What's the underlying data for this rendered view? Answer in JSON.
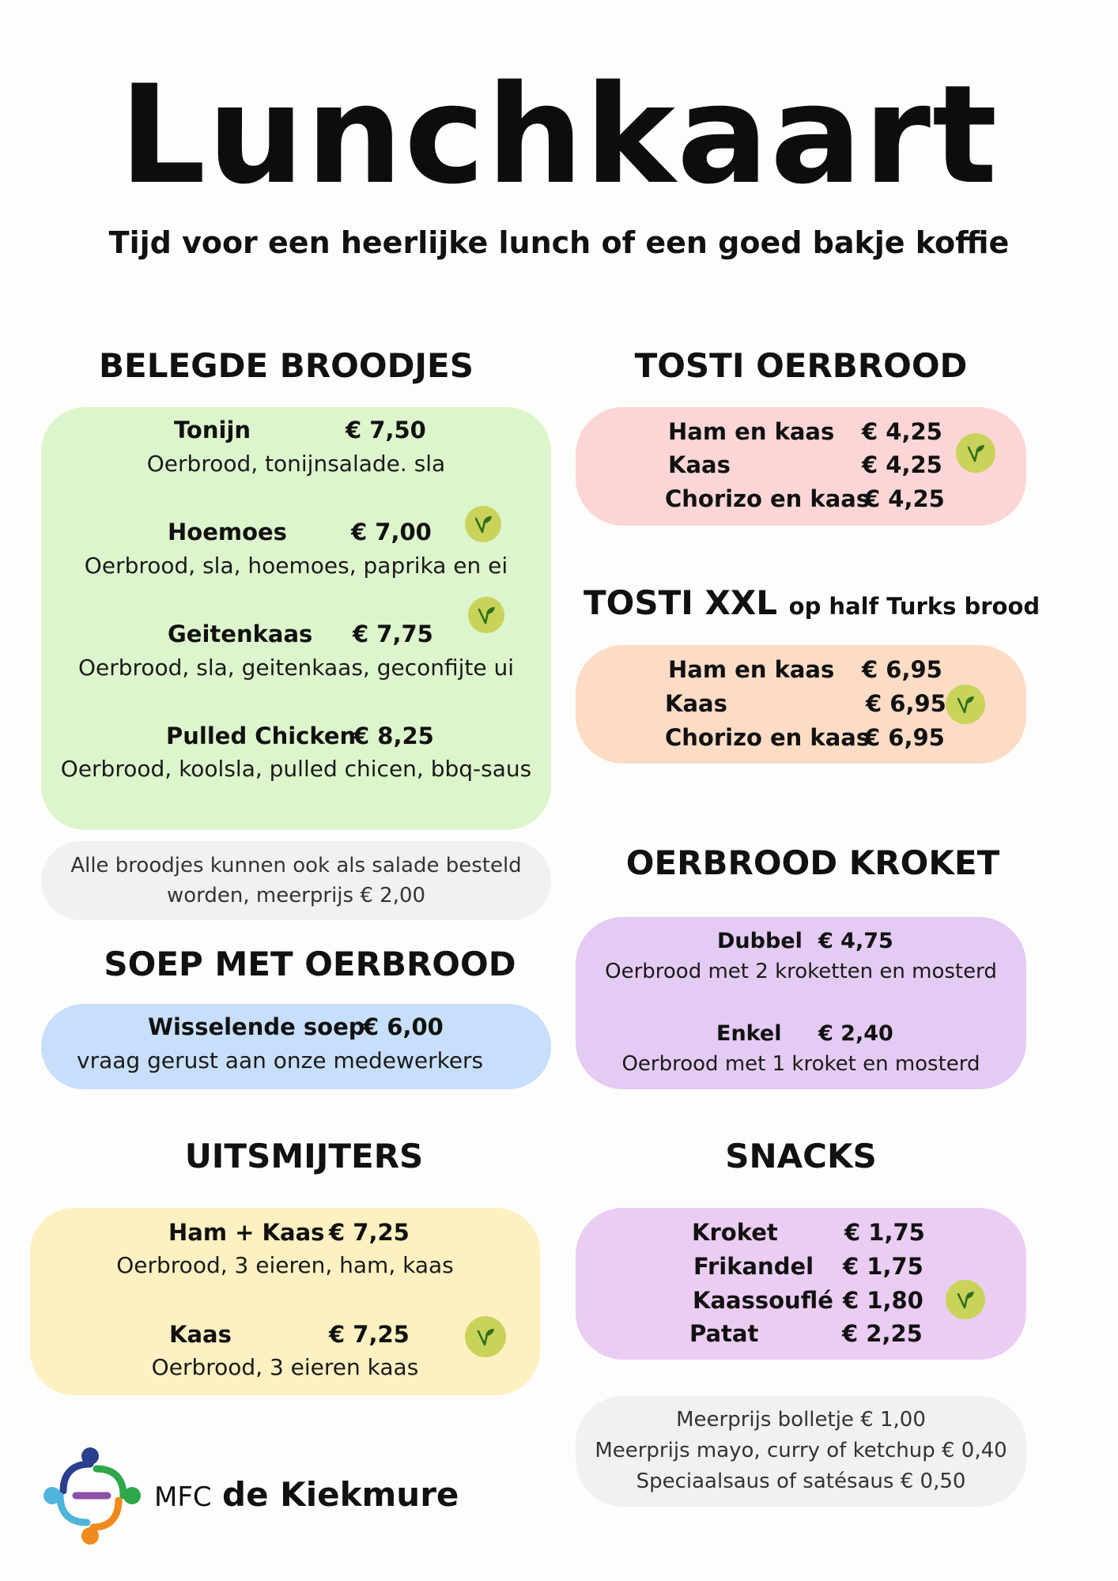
{
  "title": "Lunchkaart",
  "subtitle": "Tijd voor een heerlijke lunch of een goed bakje koffie",
  "belegde": {
    "heading": "BELEGDE BROODJES",
    "items": [
      {
        "name": "Tonijn",
        "price": "€ 7,50",
        "desc": "Oerbrood, tonijnsalade. sla"
      },
      {
        "name": "Hoemoes",
        "price": "€ 7,00",
        "desc": "Oerbrood, sla, hoemoes, paprika en ei"
      },
      {
        "name": "Geitenkaas",
        "price": "€ 7,75",
        "desc": "Oerbrood, sla, geitenkaas, geconfijte ui"
      },
      {
        "name": "Pulled Chicken",
        "price": "€ 8,25",
        "desc": "Oerbrood, koolsla, pulled chicen, bbq-saus"
      }
    ],
    "note_line1": "Alle broodjes kunnen ook als salade besteld",
    "note_line2": "worden, meerprijs € 2,00"
  },
  "soep": {
    "heading": "SOEP MET OERBROOD",
    "name": "Wisselende soep",
    "price": "€ 6,00",
    "desc": "vraag gerust aan onze medewerkers"
  },
  "uitsmijters": {
    "heading": "UITSMIJTERS",
    "items": [
      {
        "name": "Ham + Kaas",
        "price": "€ 7,25",
        "desc": "Oerbrood, 3 eieren, ham, kaas"
      },
      {
        "name": "Kaas",
        "price": "€ 7,25",
        "desc": "Oerbrood, 3 eieren kaas"
      }
    ]
  },
  "tosti": {
    "heading": "TOSTI OERBROOD",
    "items": [
      {
        "name": "Ham en kaas",
        "price": "€ 4,25"
      },
      {
        "name": "Kaas",
        "price": "€ 4,25"
      },
      {
        "name": "Chorizo en kaas",
        "price": "€ 4,25"
      }
    ]
  },
  "tosti_xxl": {
    "heading": "TOSTI XXL",
    "note": "op half Turks brood",
    "items": [
      {
        "name": "Ham en kaas",
        "price": "€ 6,95"
      },
      {
        "name": "Kaas",
        "price": "€ 6,95"
      },
      {
        "name": "Chorizo en kaas",
        "price": "€ 6,95"
      }
    ]
  },
  "kroket": {
    "heading": "OERBROOD KROKET",
    "items": [
      {
        "name": "Dubbel",
        "price": "€ 4,75",
        "desc": "Oerbrood met 2 kroketten en mosterd"
      },
      {
        "name": "Enkel",
        "price": "€ 2,40",
        "desc": "Oerbrood met 1 kroket en mosterd"
      }
    ]
  },
  "snacks": {
    "heading": "SNACKS",
    "items": [
      {
        "name": "Kroket",
        "price": "€ 1,75"
      },
      {
        "name": "Frikandel",
        "price": "€ 1,75"
      },
      {
        "name": "Kaassouflé",
        "price": "€ 1,80"
      },
      {
        "name": "Patat",
        "price": "€ 2,25"
      }
    ],
    "note_line1": "Meerprijs bolletje € 1,00",
    "note_line2": "Meerprijs mayo, curry of ketchup € 0,40",
    "note_line3": "Speciaalsaus of satésaus € 0,50"
  },
  "logo": {
    "prefix": "MFC",
    "name": "de Kiekmure"
  },
  "colors": {
    "green": "#ddf5cc",
    "pink": "#fcd6d6",
    "peach": "#fddcc6",
    "blue": "#c7dffa",
    "yellow": "#fdf0c1",
    "lilac": "#e4cbf3",
    "grey": "#f1f1ef",
    "veg_badge": "#c9d35a"
  },
  "icons": {
    "veg": "vegetarian-leaf-icon",
    "logo": "kiekmure-logo-icon"
  }
}
